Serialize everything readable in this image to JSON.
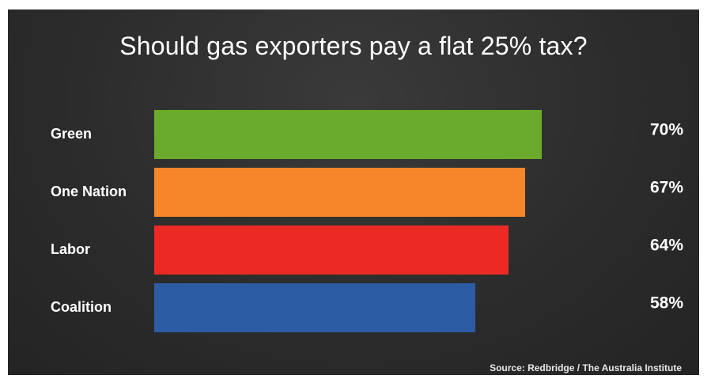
{
  "chart_data": {
    "type": "bar",
    "orientation": "horizontal",
    "title": "Should gas exporters pay a flat 25% tax?",
    "categories": [
      "Green",
      "One Nation",
      "Labor",
      "Coalition"
    ],
    "values": [
      70,
      67,
      64,
      58
    ],
    "value_labels": [
      "70%",
      "67%",
      "64%",
      "58%"
    ],
    "colors": [
      "#6aab2c",
      "#f7862a",
      "#eb2a26",
      "#2c5ca4"
    ],
    "xlim": [
      0,
      70
    ],
    "grid": false,
    "legend": "none",
    "source": "Source: Redbridge / The Australia Institute"
  }
}
